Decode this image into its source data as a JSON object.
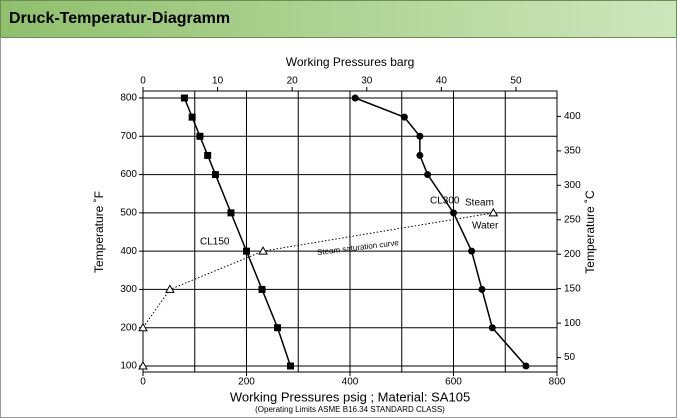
{
  "header": {
    "title": "Druck-Temperatur-Diagramm"
  },
  "chart_data": {
    "type": "line",
    "title": "Working Pressures barg",
    "xlabel": "Working Pressures psig ; Material: SA105",
    "note": "(Operating Limits ASME B16.34 STANDARD CLASS)",
    "ylabel": "Temperature ˚F",
    "y2label": "Temperature ˚C",
    "xlim": [
      0,
      800
    ],
    "xticks": [
      0,
      200,
      400,
      600,
      800
    ],
    "xgrid": [
      100,
      200,
      300,
      400,
      500,
      600,
      700
    ],
    "x2lim": [
      0,
      55.5
    ],
    "x2ticks": [
      0,
      10,
      20,
      30,
      40,
      50
    ],
    "ylim": [
      100,
      800
    ],
    "yticks": [
      100,
      200,
      300,
      400,
      500,
      600,
      700,
      800
    ],
    "y2lim": [
      37.8,
      426.7
    ],
    "y2ticks": [
      50,
      100,
      150,
      200,
      250,
      300,
      350,
      400
    ],
    "grid": true,
    "series": [
      {
        "name": "CL150",
        "marker": "square",
        "dash": "solid",
        "color": "#000000",
        "x": [
          285,
          260,
          230,
          200,
          170,
          140,
          125,
          110,
          95,
          80
        ],
        "values": [
          100,
          200,
          300,
          400,
          500,
          600,
          650,
          700,
          750,
          800
        ]
      },
      {
        "name": "CL300",
        "marker": "circle",
        "dash": "solid",
        "color": "#000000",
        "x": [
          740,
          675,
          655,
          635,
          600,
          550,
          535,
          535,
          505,
          410
        ],
        "values": [
          100,
          200,
          300,
          400,
          500,
          600,
          650,
          700,
          750,
          800
        ]
      },
      {
        "name": "Steam saturation curve",
        "marker": "triangle",
        "dash": "dotted",
        "color": "#000000",
        "x": [
          0,
          0,
          52,
          232,
          677
        ],
        "values": [
          100,
          200,
          300,
          400,
          500
        ]
      }
    ],
    "annotations": [
      "Steam",
      "Water"
    ]
  }
}
